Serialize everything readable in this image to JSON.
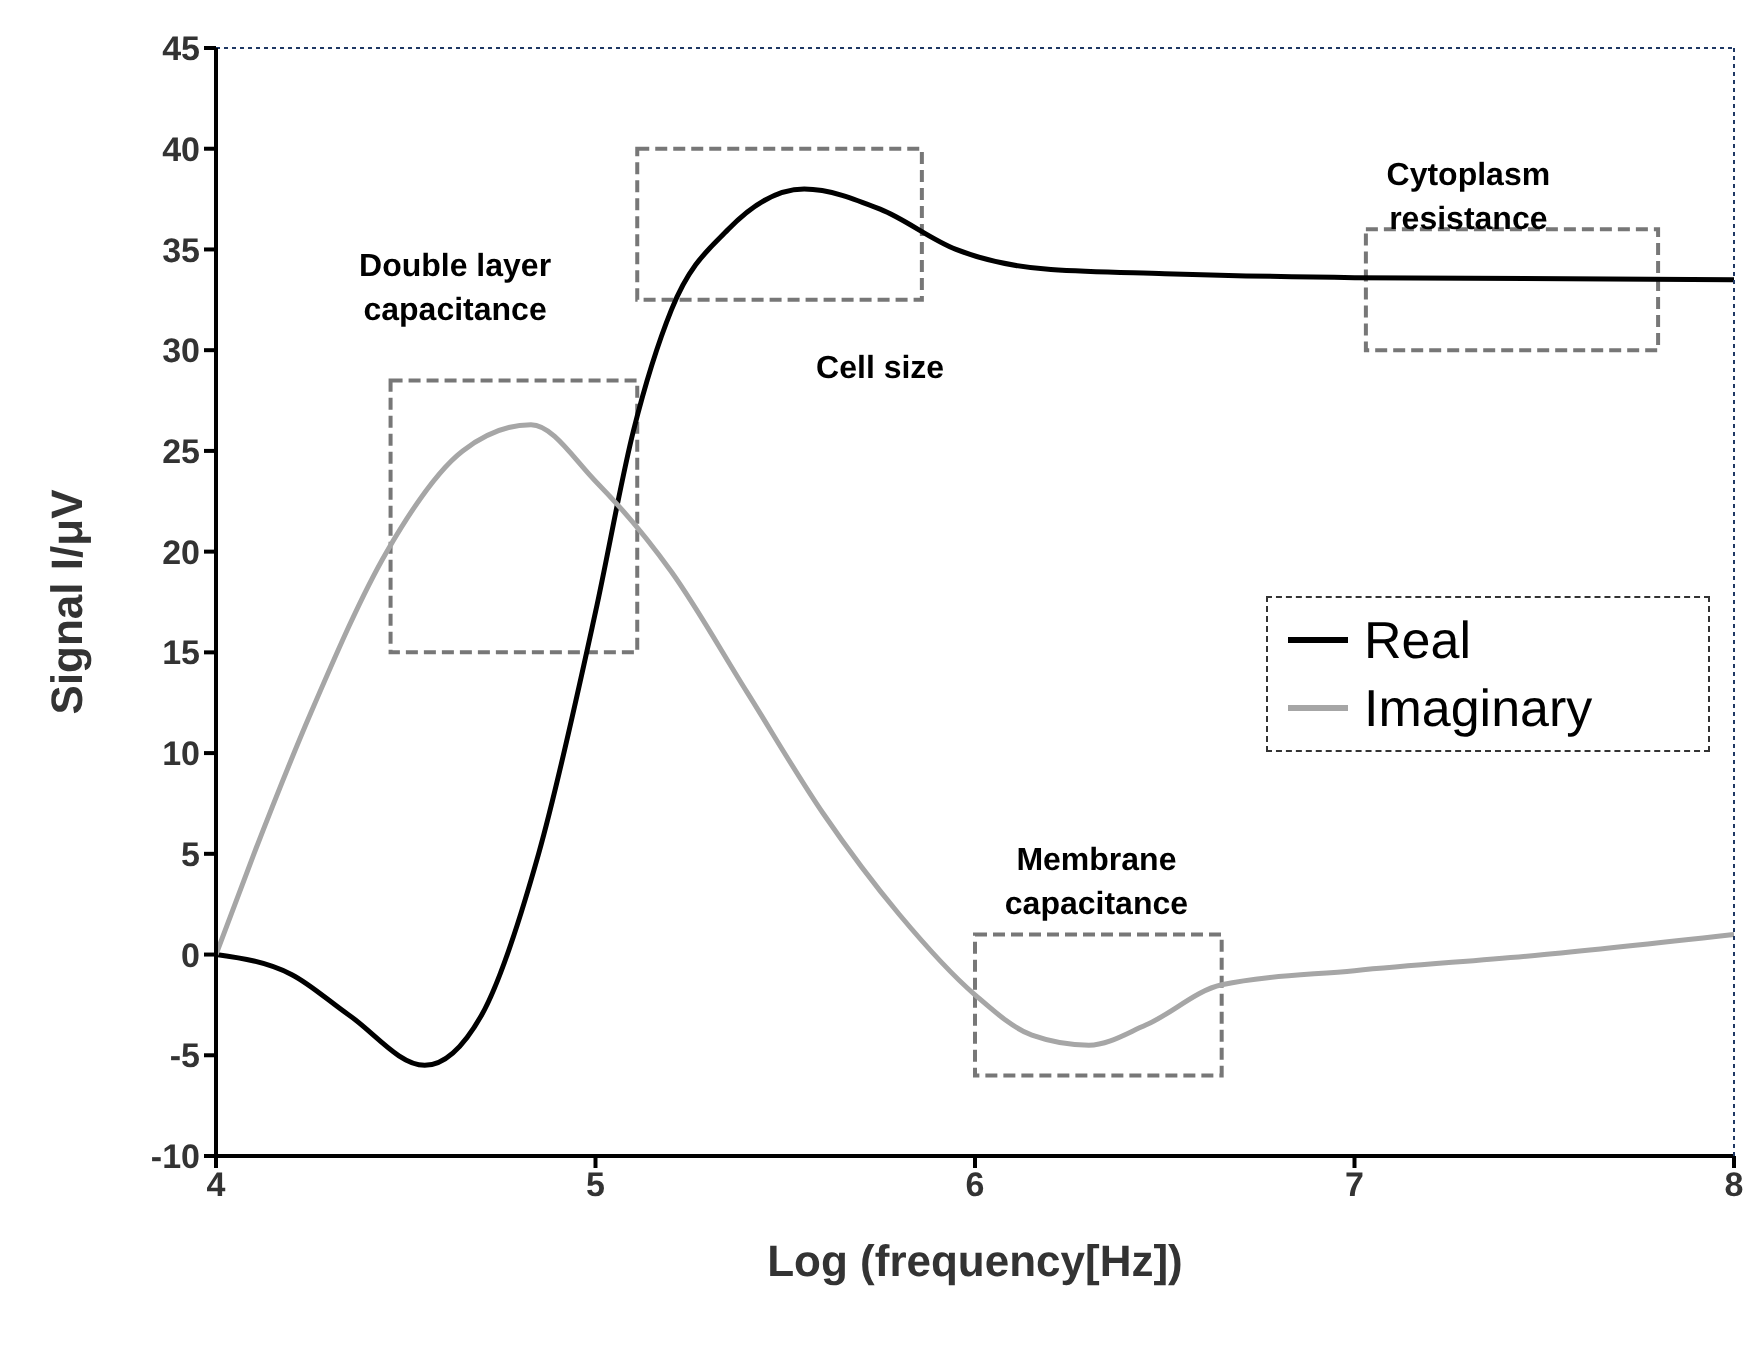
{
  "chart_data": {
    "type": "line",
    "xlabel": "Log (frequency[Hz])",
    "ylabel": "Signal I/μV",
    "xlim": [
      4,
      8
    ],
    "xticks": [
      4,
      5,
      6,
      7,
      8
    ],
    "ylim": [
      -10,
      45
    ],
    "yticks": [
      -10,
      -5,
      0,
      5,
      10,
      15,
      20,
      25,
      30,
      35,
      40,
      45
    ],
    "grid": false,
    "legend": "right",
    "marker": "none",
    "line_style": "solid",
    "series": [
      {
        "name": "Real",
        "color": "#000000",
        "x": [
          4,
          4.2,
          4.35,
          4.55,
          4.7,
          4.85,
          5,
          5.1,
          5.2,
          5.35,
          5.55,
          5.75,
          5.95,
          6.2,
          6.5,
          7,
          8
        ],
        "values": [
          0,
          -1,
          -3,
          -5.5,
          -3,
          5,
          17,
          26,
          32,
          36,
          38,
          37,
          35,
          34,
          33.8,
          33.6,
          33.5
        ]
      },
      {
        "name": "Imaginary",
        "color": "#a6a6a6",
        "x": [
          4,
          4.1,
          4.25,
          4.45,
          4.65,
          4.83,
          5,
          5.2,
          5.4,
          5.6,
          5.8,
          6,
          6.15,
          6.3,
          6.45,
          6.65,
          7,
          7.5,
          8
        ],
        "values": [
          0,
          5,
          12,
          20,
          25,
          26.3,
          23.5,
          19,
          13,
          7,
          2,
          -2,
          -4,
          -4.5,
          -3.5,
          -1.5,
          -0.8,
          0,
          1
        ]
      }
    ],
    "annotations": [
      "Double layer capacitance",
      "Cell size",
      "Cytoplasm resistance",
      "Membrane capacitance"
    ]
  }
}
